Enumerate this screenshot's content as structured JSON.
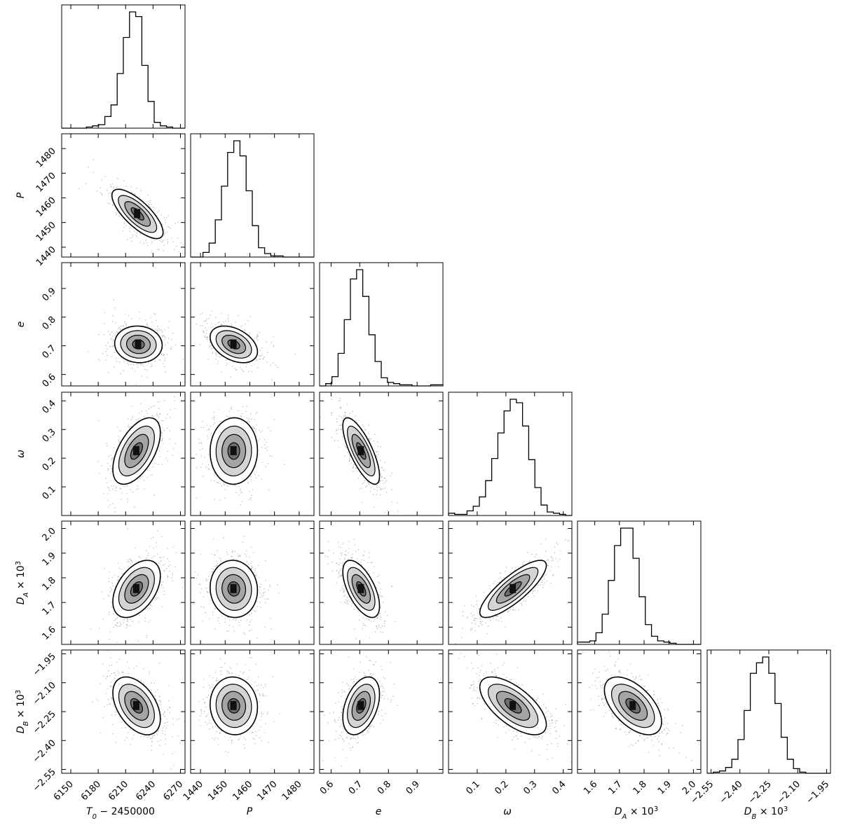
{
  "chart_data": {
    "type": "corner",
    "title": "",
    "grid": false,
    "parameters": [
      {
        "key": "T0",
        "name": "T_0 - 2450000",
        "label_main": "T",
        "label_sub": "0",
        "label_suffix": " − 2450000",
        "range": [
          6140,
          6275
        ],
        "ticks": [
          6150,
          6180,
          6210,
          6240,
          6270
        ],
        "tick_labels": [
          "6150",
          "6180",
          "6210",
          "6240",
          "6270"
        ],
        "hist": [
          0.0,
          0.0,
          0.0,
          0.0,
          0.01,
          0.02,
          0.03,
          0.1,
          0.2,
          0.47,
          0.78,
          1.0,
          0.96,
          0.54,
          0.23,
          0.05,
          0.02,
          0.01,
          0.0,
          0.0
        ]
      },
      {
        "key": "P",
        "name": "P",
        "label_main": "P",
        "label_sub": "",
        "label_suffix": "",
        "range": [
          1436,
          1486
        ],
        "ticks": [
          1440,
          1450,
          1460,
          1470,
          1480
        ],
        "tick_labels": [
          "1440",
          "1450",
          "1460",
          "1470",
          "1480"
        ],
        "hist": [
          0.0,
          0.0,
          0.04,
          0.12,
          0.32,
          0.61,
          0.9,
          1.0,
          0.87,
          0.57,
          0.27,
          0.08,
          0.03,
          0.01,
          0.01,
          0.0,
          0.0,
          0.0,
          0.0,
          0.0
        ]
      },
      {
        "key": "e",
        "name": "e",
        "label_main": "e",
        "label_sub": "",
        "label_suffix": "",
        "range": [
          0.56,
          0.99
        ],
        "ticks": [
          0.6,
          0.7,
          0.8,
          0.9
        ],
        "tick_labels": [
          "0.6",
          "0.7",
          "0.8",
          "0.9"
        ],
        "hist": [
          0.0,
          0.02,
          0.08,
          0.28,
          0.57,
          0.92,
          1.0,
          0.77,
          0.44,
          0.21,
          0.07,
          0.03,
          0.02,
          0.01,
          0.01,
          0.0,
          0.0,
          0.0,
          0.01,
          0.01
        ]
      },
      {
        "key": "omega",
        "name": "ω",
        "label_main": "ω",
        "label_sub": "",
        "label_suffix": "",
        "range": [
          0.0,
          0.43
        ],
        "ticks": [
          0.1,
          0.2,
          0.3,
          0.4
        ],
        "tick_labels": [
          "0.1",
          "0.2",
          "0.3",
          "0.4"
        ],
        "hist": [
          0.02,
          0.01,
          0.01,
          0.04,
          0.08,
          0.16,
          0.3,
          0.49,
          0.71,
          0.9,
          1.0,
          0.97,
          0.77,
          0.48,
          0.24,
          0.09,
          0.03,
          0.02,
          0.01,
          0.0
        ]
      },
      {
        "key": "DA",
        "name": "D_A × 10^3",
        "label_main": "D",
        "label_sub": "A",
        "label_suffix": " × 10",
        "label_sup": "3",
        "range": [
          1.53,
          2.03
        ],
        "ticks": [
          1.6,
          1.7,
          1.8,
          1.9,
          2.0
        ],
        "tick_labels": [
          "1.6",
          "1.7",
          "1.8",
          "1.9",
          "2.0"
        ],
        "hist": [
          0.02,
          0.02,
          0.03,
          0.1,
          0.26,
          0.55,
          0.85,
          1.0,
          1.0,
          0.74,
          0.41,
          0.17,
          0.07,
          0.03,
          0.02,
          0.01,
          0.0,
          0.0,
          0.0,
          0.0
        ]
      },
      {
        "key": "DB",
        "name": "D_B × 10^3",
        "label_main": "D",
        "label_sub": "B",
        "label_suffix": " × 10",
        "label_sup": "3",
        "range": [
          -2.57,
          -1.93
        ],
        "ticks": [
          -2.55,
          -2.4,
          -2.25,
          -2.1,
          -1.95
        ],
        "tick_labels": [
          "−2.55",
          "−2.40",
          "−2.25",
          "−2.10",
          "−1.95"
        ],
        "hist": [
          0.0,
          0.01,
          0.02,
          0.05,
          0.12,
          0.29,
          0.54,
          0.86,
          0.95,
          1.0,
          0.86,
          0.6,
          0.31,
          0.12,
          0.04,
          0.01,
          0.0,
          0.0,
          0.0,
          0.0
        ]
      }
    ],
    "contours": {
      "1-0": {
        "center": [
          6223,
          1453.5
        ],
        "sigma": [
          14,
          5
        ],
        "rho": -0.75
      },
      "2-0": {
        "center": [
          6224,
          0.705
        ],
        "sigma": [
          13,
          0.032
        ],
        "rho": -0.05
      },
      "2-1": {
        "center": [
          1453.5,
          0.705
        ],
        "sigma": [
          4.8,
          0.032
        ],
        "rho": -0.4
      },
      "3-0": {
        "center": [
          6222,
          0.225
        ],
        "sigma": [
          13,
          0.058
        ],
        "rho": 0.55
      },
      "3-1": {
        "center": [
          1453.5,
          0.225
        ],
        "sigma": [
          4.8,
          0.058
        ],
        "rho": 0.02
      },
      "3-2": {
        "center": [
          0.705,
          0.225
        ],
        "sigma": [
          0.032,
          0.058
        ],
        "rho": -0.75
      },
      "4-0": {
        "center": [
          6222,
          1.755
        ],
        "sigma": [
          13,
          0.058
        ],
        "rho": 0.45
      },
      "4-1": {
        "center": [
          1453.5,
          1.755
        ],
        "sigma": [
          4.8,
          0.058
        ],
        "rho": -0.05
      },
      "4-2": {
        "center": [
          0.705,
          1.755
        ],
        "sigma": [
          0.032,
          0.058
        ],
        "rho": -0.6
      },
      "4-3": {
        "center": [
          0.225,
          1.755
        ],
        "sigma": [
          0.058,
          0.058
        ],
        "rho": 0.82
      },
      "5-0": {
        "center": [
          6222,
          -2.22
        ],
        "sigma": [
          13,
          0.075
        ],
        "rho": -0.45
      },
      "5-1": {
        "center": [
          1453.5,
          -2.22
        ],
        "sigma": [
          4.8,
          0.075
        ],
        "rho": -0.05
      },
      "5-2": {
        "center": [
          0.705,
          -2.22
        ],
        "sigma": [
          0.032,
          0.075
        ],
        "rho": 0.4
      },
      "5-3": {
        "center": [
          0.225,
          -2.22
        ],
        "sigma": [
          0.058,
          0.075
        ],
        "rho": -0.65
      },
      "5-4": {
        "center": [
          1.755,
          -2.22
        ],
        "sigma": [
          0.058,
          0.075
        ],
        "rho": -0.55
      }
    },
    "contour_levels": [
      0.5,
      1.0,
      1.5,
      2.0
    ],
    "colors": {
      "line": "#000000",
      "scatter": "#555555",
      "fill_levels": [
        "#ffffff",
        "#d4d4d4",
        "#a4a4a4",
        "#6e6e6e"
      ],
      "core": "#111111"
    }
  }
}
